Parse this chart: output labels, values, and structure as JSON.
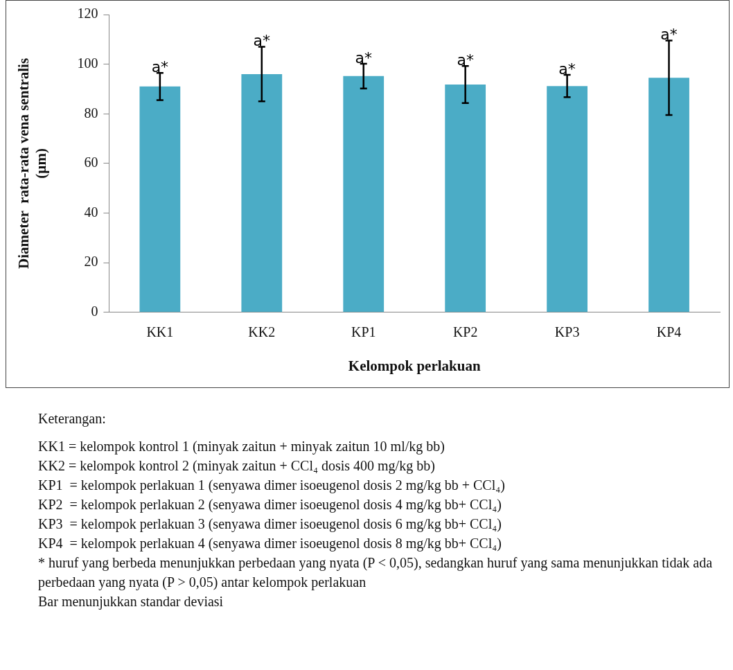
{
  "chart_data": {
    "type": "bar",
    "categories": [
      "KK1",
      "KK2",
      "KP1",
      "KP2",
      "KP3",
      "KP4"
    ],
    "values": [
      91,
      96,
      95.2,
      91.8,
      91.2,
      94.5
    ],
    "errors": [
      5.5,
      11,
      5,
      7.5,
      4.5,
      15
    ],
    "color": "#4bacc6",
    "xlabel": "Kelompok perlakuan",
    "ylabel": "Diameter  rata-rata vena sentralis (µm)",
    "ylim": [
      0,
      120
    ],
    "yticks": [
      0,
      20,
      40,
      60,
      80,
      100,
      120
    ],
    "grid": false,
    "legend": false,
    "annotations": [
      {
        "text": "a*",
        "x": "KK1",
        "y": 96.5
      },
      {
        "text": "a*",
        "x": "KK2",
        "y": 107
      },
      {
        "text": "a*",
        "x": "KP1",
        "y": 100.2
      },
      {
        "text": "a*",
        "x": "KP2",
        "y": 99.3
      },
      {
        "text": "a*",
        "x": "KP3",
        "y": 95.7
      },
      {
        "text": "a*",
        "x": "KP4",
        "y": 109.5
      },
      "Keterangan:",
      "KK1 = kelompok kontrol 1 (minyak zaitun + minyak zaitun 10 ml/kg bb)",
      "KK2 = kelompok kontrol 2 (minyak zaitun + CCl₄ dosis 400 mg/kg bb)",
      "KP1  = kelompok perlakuan 1 (senyawa dimer isoeugenol dosis 2 mg/kg bb + CCl₄)",
      "KP2  = kelompok perlakuan 2 (senyawa dimer isoeugenol dosis 4 mg/kg bb+ CCl₄)",
      "KP3  = kelompok perlakuan 3 (senyawa dimer isoeugenol dosis 6 mg/kg bb+ CCl₄)",
      "KP4  = kelompok perlakuan 4 (senyawa dimer isoeugenol dosis 8 mg/kg bb+ CCl₄)",
      "* huruf yang berbeda menunjukkan perbedaan yang nyata (P < 0,05), sedangkan huruf yang sama menunjukkan tidak ada perbedaan yang nyata (P > 0,05) antar kelompok perlakuan",
      "Bar menunjukkan standar deviasi"
    ]
  }
}
